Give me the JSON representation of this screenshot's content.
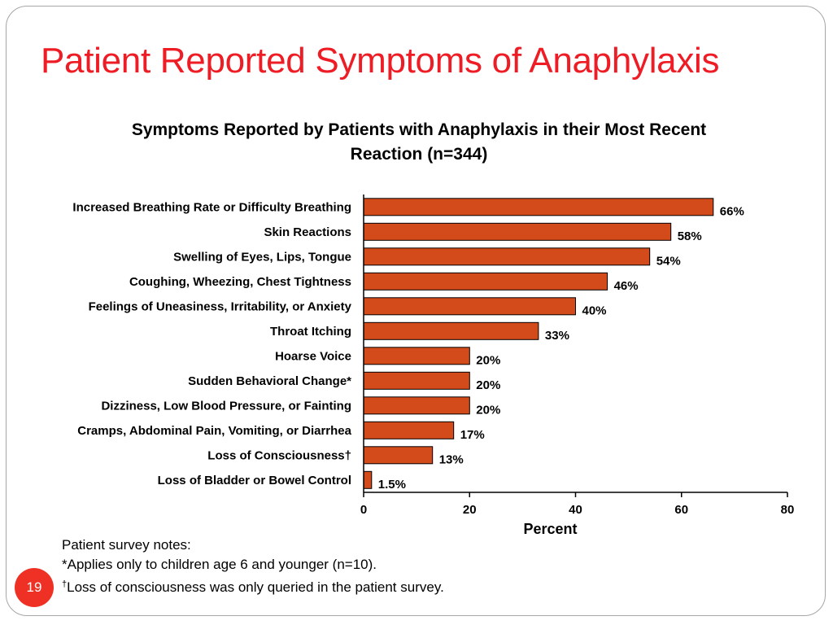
{
  "slide": {
    "title": "Patient Reported Symptoms of Anaphylaxis",
    "page_number": "19",
    "accent_color": "#ee1c25"
  },
  "notes": {
    "heading": "Patient survey notes:",
    "line1": "*Applies only to children age 6 and younger (n=10).",
    "line2_mark": "†",
    "line2": "Loss of consciousness was only queried in the patient survey."
  },
  "chart_data": {
    "type": "bar",
    "orientation": "horizontal",
    "title": "Symptoms Reported by Patients with Anaphylaxis in their Most Recent Reaction (n=344)",
    "xlabel": "Percent",
    "ylabel": "",
    "xlim": [
      0,
      80
    ],
    "xticks": [
      0,
      20,
      40,
      60,
      80
    ],
    "grid": false,
    "bar_color": "#d34a1b",
    "categories": [
      "Increased Breathing Rate or Difficulty Breathing",
      "Skin Reactions",
      "Swelling of Eyes, Lips, Tongue",
      "Coughing, Wheezing, Chest Tightness",
      "Feelings of Uneasiness, Irritability, or Anxiety",
      "Throat Itching",
      "Hoarse Voice",
      "Sudden Behavioral Change*",
      "Dizziness, Low Blood Pressure, or Fainting",
      "Cramps, Abdominal Pain, Vomiting, or Diarrhea",
      "Loss of Consciousness†",
      "Loss of Bladder or Bowel Control"
    ],
    "values": [
      66,
      58,
      54,
      46,
      40,
      33,
      20,
      20,
      20,
      17,
      13,
      1.5
    ],
    "value_labels": [
      "66%",
      "58%",
      "54%",
      "46%",
      "40%",
      "33%",
      "20%",
      "20%",
      "20%",
      "17%",
      "13%",
      "1.5%"
    ]
  }
}
